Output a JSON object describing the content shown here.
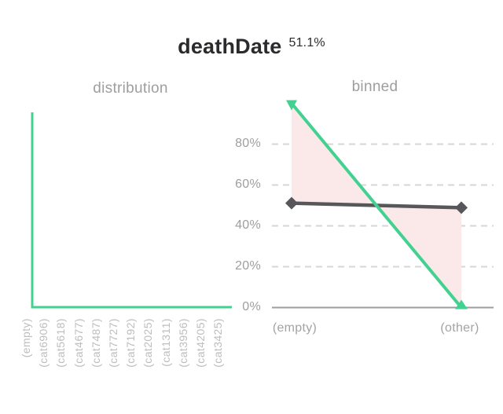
{
  "header": {
    "title": "deathDate",
    "missing_percent": "51.1%"
  },
  "palette": {
    "green": "#42d190",
    "dark": "#57575b",
    "band": "#fae9e8",
    "grid": "#d6d6d6",
    "axis": "#9e9e9e",
    "tick_text": "#9e9e9e",
    "subtitle_text": "#9e9e9e",
    "category_text": "#bdbdbd",
    "title_text": "#2b2b2e"
  },
  "chart_data": [
    {
      "type": "line",
      "title": "distribution",
      "categories": [
        "(empty)",
        "(cat6906)",
        "(cat5618)",
        "(cat4677)",
        "(cat7487)",
        "(cat7727)",
        "(cat7192)",
        "(cat2025)",
        "(cat1311)",
        "(cat3956)",
        "(cat4205)",
        "(cat3425)"
      ],
      "values": [
        100,
        0,
        0,
        0,
        0,
        0,
        0,
        0,
        0,
        0,
        0,
        0
      ],
      "ylim": [
        0,
        100
      ],
      "interpolation": "step-before",
      "grid": false,
      "series_color": "#42d190"
    },
    {
      "type": "line",
      "title": "binned",
      "categories": [
        "(empty)",
        "(other)"
      ],
      "series": [
        {
          "name": "green-distribution-line",
          "marker": "triangle",
          "color": "#42d190",
          "values": [
            100,
            0
          ]
        },
        {
          "name": "dark-comparison-line",
          "marker": "diamond",
          "color": "#57575b",
          "values": [
            51.1,
            48.9
          ]
        }
      ],
      "y_ticks": [
        80,
        60,
        40,
        20,
        0
      ],
      "y_tick_labels": [
        "80%",
        "60%",
        "40%",
        "20%",
        "0%"
      ],
      "ylim": [
        0,
        100
      ],
      "grid": "dashed-horizontal",
      "legend": false,
      "fill_between": true,
      "fill_color": "#fae9e8"
    }
  ]
}
